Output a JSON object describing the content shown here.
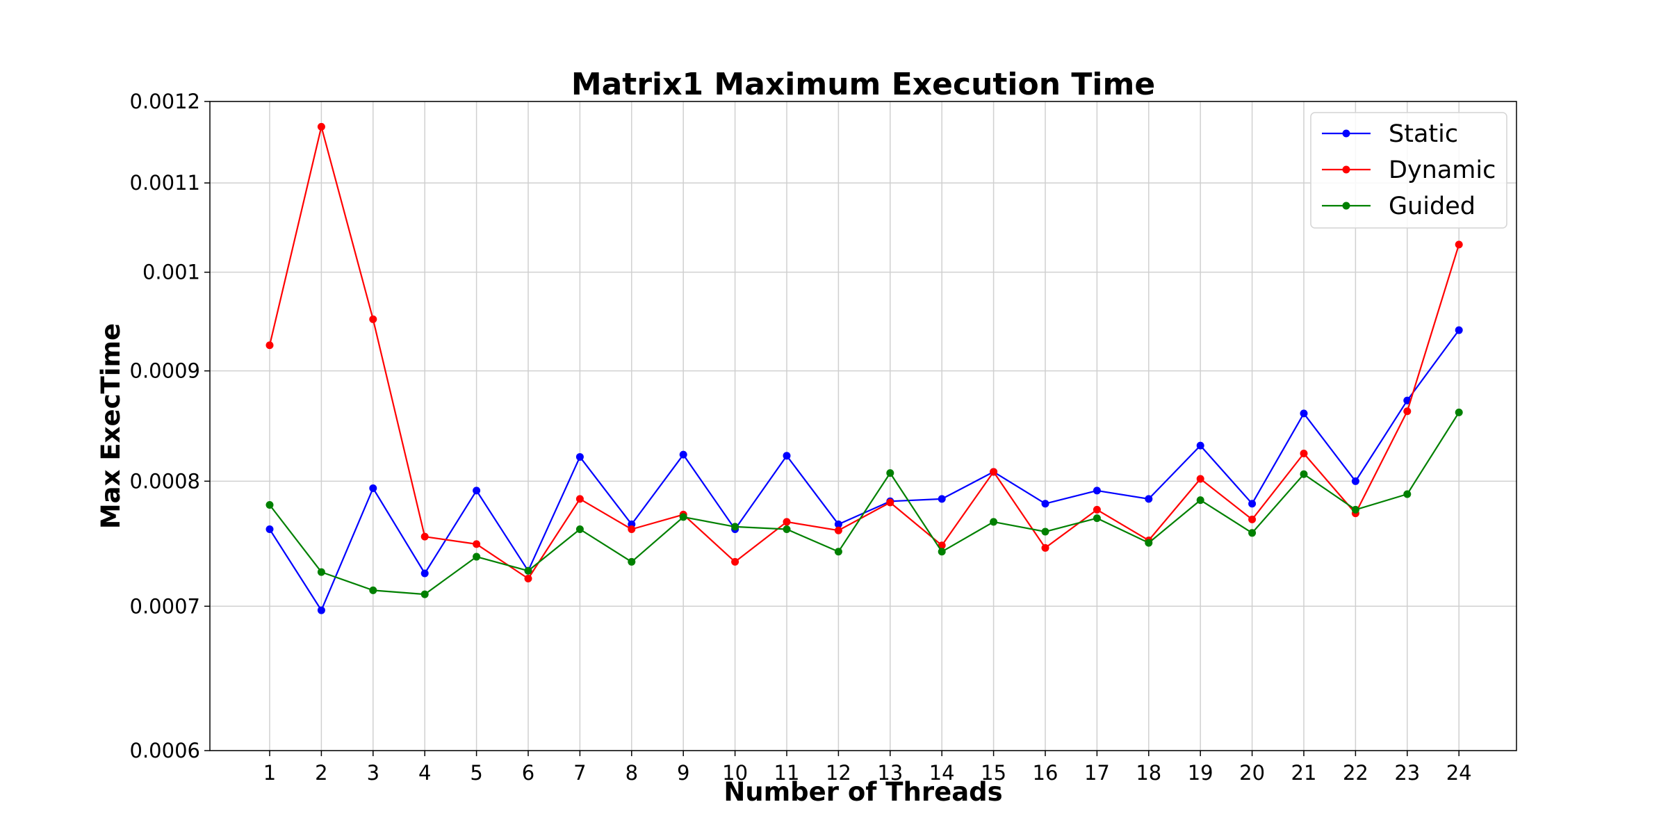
{
  "chart_data": {
    "type": "line",
    "title": "Matrix1 Maximum Execution Time",
    "xlabel": "Number of Threads",
    "ylabel": "Max ExecTime",
    "y_scale": "log",
    "ylim": [
      0.0006,
      0.0012
    ],
    "yticks": [
      0.0006,
      0.0007,
      0.0008,
      0.0009,
      0.001,
      0.0011,
      0.0012
    ],
    "ytick_labels": [
      "0.0006",
      "0.0007",
      "0.0008",
      "0.0009",
      "0.001",
      "0.0011",
      "0.0012"
    ],
    "x": [
      1,
      2,
      3,
      4,
      5,
      6,
      7,
      8,
      9,
      10,
      11,
      12,
      13,
      14,
      15,
      16,
      17,
      18,
      19,
      20,
      21,
      22,
      23,
      24
    ],
    "grid": true,
    "legend_position": "top-right",
    "series": [
      {
        "name": "Static",
        "color": "#0000ff",
        "marker": "circle",
        "values": [
          0.00076,
          0.000697,
          0.000794,
          0.000725,
          0.000792,
          0.000727,
          0.000821,
          0.000764,
          0.000823,
          0.00076,
          0.000822,
          0.000764,
          0.000783,
          0.000785,
          0.000808,
          0.000781,
          0.000792,
          0.000785,
          0.000831,
          0.000781,
          0.00086,
          0.0008,
          0.000872,
          0.00094
        ]
      },
      {
        "name": "Dynamic",
        "color": "#ff0000",
        "marker": "circle",
        "values": [
          0.000925,
          0.001168,
          0.000951,
          0.000754,
          0.000748,
          0.000721,
          0.000785,
          0.00076,
          0.000772,
          0.000734,
          0.000766,
          0.000759,
          0.000782,
          0.000747,
          0.000808,
          0.000745,
          0.000776,
          0.000751,
          0.000802,
          0.000768,
          0.000824,
          0.000773,
          0.000862,
          0.00103
        ]
      },
      {
        "name": "Guided",
        "color": "#008000",
        "marker": "circle",
        "values": [
          0.00078,
          0.000726,
          0.000712,
          0.000709,
          0.000738,
          0.000727,
          0.00076,
          0.000734,
          0.00077,
          0.000762,
          0.00076,
          0.000742,
          0.000807,
          0.000742,
          0.000766,
          0.000758,
          0.000769,
          0.000749,
          0.000784,
          0.000757,
          0.000806,
          0.000776,
          0.000789,
          0.000861
        ]
      }
    ]
  }
}
